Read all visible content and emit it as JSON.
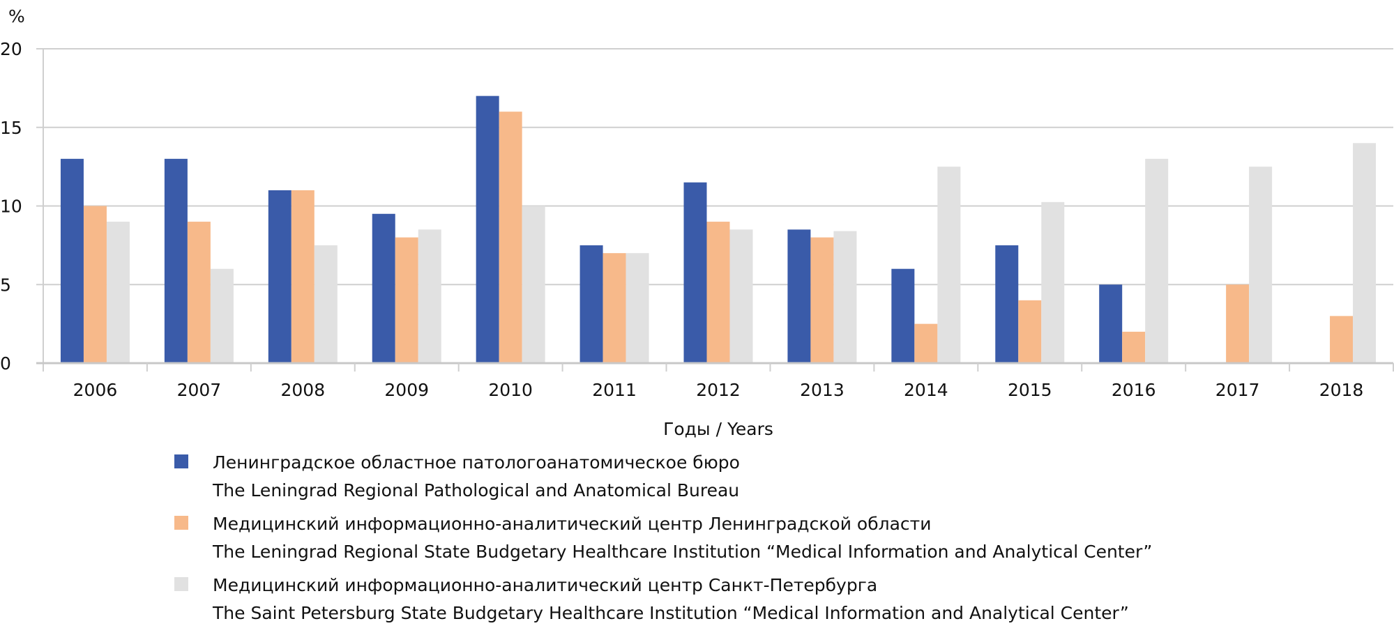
{
  "chart_data": {
    "type": "bar",
    "title": "",
    "ylabel": "%",
    "xlabel": "Годы / Years",
    "ylim": [
      0,
      20
    ],
    "yticks": [
      0,
      5,
      10,
      15,
      20
    ],
    "grid": true,
    "legend_position": "bottom",
    "categories": [
      "2006",
      "2007",
      "2008",
      "2009",
      "2010",
      "2011",
      "2012",
      "2013",
      "2014",
      "2015",
      "2016",
      "2017",
      "2018"
    ],
    "series": [
      {
        "name_ru": "Ленинградское областное патологоанатомическое бюро",
        "name_en": "The Leningrad Regional Pathological and Anatomical Bureau",
        "color": "#3A5BA9",
        "values": [
          13,
          13,
          11,
          9.5,
          17,
          7.5,
          11.5,
          8.5,
          6,
          7.5,
          5,
          null,
          null
        ]
      },
      {
        "name_ru": "Медицинский информационно-аналитический центр Ленинградской области",
        "name_en": "The Leningrad Regional State Budgetary Healthcare Institution “Medical Information and Analytical Center”",
        "color": "#F7B98A",
        "values": [
          10,
          9,
          11,
          8,
          16,
          7,
          9,
          8,
          2.5,
          4,
          2,
          5,
          3
        ]
      },
      {
        "name_ru": "Медицинский информационно-аналитический центр Санкт-Петербурга",
        "name_en": "The Saint Petersburg State Budgetary Healthcare Institution “Medical Information and Analytical Center”",
        "color": "#E1E1E1",
        "values": [
          9,
          6,
          7.5,
          8.5,
          10,
          7,
          8.5,
          8.4,
          12.5,
          10.25,
          13,
          12.5,
          14
        ]
      }
    ]
  }
}
